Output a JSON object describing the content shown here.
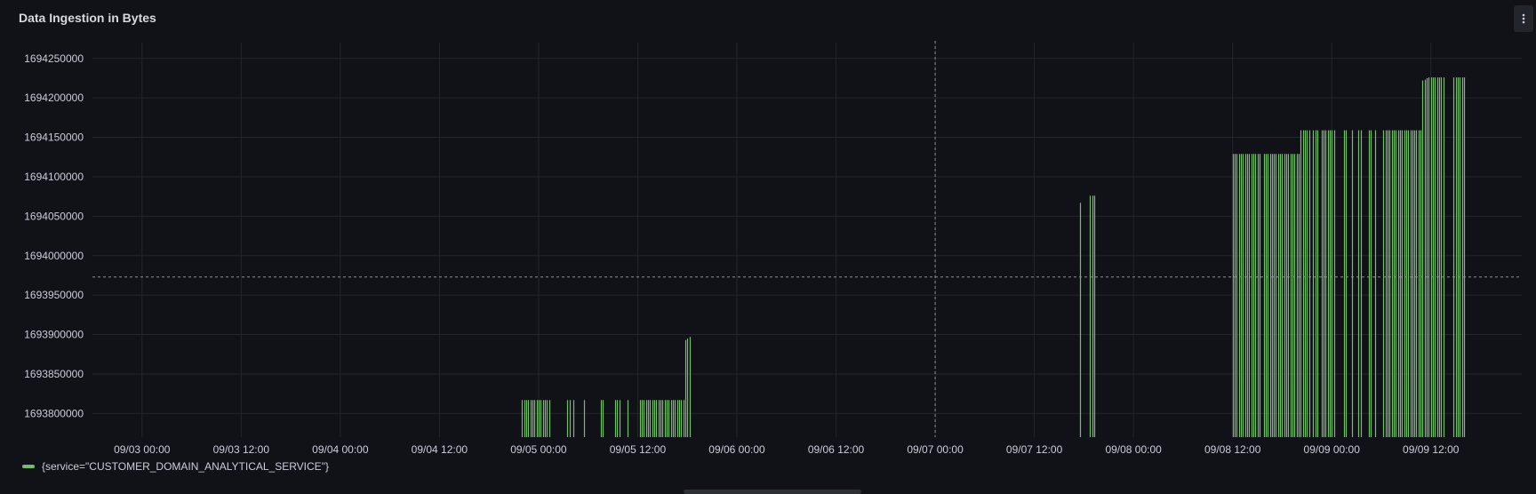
{
  "panel": {
    "title": "Data Ingestion in Bytes",
    "menu_icon": "vertical-ellipsis-icon"
  },
  "legend": {
    "label": "{service=\"CUSTOMER_DOMAIN_ANALYTICAL_SERVICE\"}",
    "color": "#73bf69"
  },
  "colors": {
    "background": "#111217",
    "grid": "#24262c",
    "series": "#73bf69",
    "crosshair": "#8e8e9e",
    "tick_text": "#ccccdc"
  },
  "chart_data": {
    "type": "bar",
    "title": "Data Ingestion in Bytes",
    "xlabel": "",
    "ylabel": "",
    "grid": true,
    "legend_position": "bottom-left",
    "x_axis": {
      "type": "time",
      "min": "09/02 18:00",
      "max": "09/09 23:00",
      "ticks": [
        "09/03 00:00",
        "09/03 12:00",
        "09/04 00:00",
        "09/04 12:00",
        "09/05 00:00",
        "09/05 12:00",
        "09/06 00:00",
        "09/06 12:00",
        "09/07 00:00",
        "09/07 12:00",
        "09/08 00:00",
        "09/08 12:00",
        "09/09 00:00",
        "09/09 12:00"
      ]
    },
    "y_axis": {
      "min": 1693770000,
      "max": 1694270000,
      "ticks": [
        1693800000,
        1693850000,
        1693900000,
        1693950000,
        1694000000,
        1694050000,
        1694100000,
        1694150000,
        1694200000,
        1694250000
      ]
    },
    "crosshair": {
      "x": "09/07 00:00",
      "y": 1693973000
    },
    "series": [
      {
        "name": "{service=\"CUSTOMER_DOMAIN_ANALYTICAL_SERVICE\"}",
        "points": [
          {
            "t": "09/04 22:00",
            "v": 1693817000
          },
          {
            "t": "09/04 22:15",
            "v": 1693817000
          },
          {
            "t": "09/04 22:30",
            "v": 1693817000
          },
          {
            "t": "09/04 22:45",
            "v": 1693817000
          },
          {
            "t": "09/04 23:00",
            "v": 1693817000
          },
          {
            "t": "09/04 23:15",
            "v": 1693817000
          },
          {
            "t": "09/04 23:30",
            "v": 1693817000
          },
          {
            "t": "09/04 23:45",
            "v": 1693817000
          },
          {
            "t": "09/05 00:00",
            "v": 1693817000
          },
          {
            "t": "09/05 00:15",
            "v": 1693817000
          },
          {
            "t": "09/05 00:30",
            "v": 1693817000
          },
          {
            "t": "09/05 00:45",
            "v": 1693817000
          },
          {
            "t": "09/05 01:00",
            "v": 1693817000
          },
          {
            "t": "09/05 01:15",
            "v": 1693817000
          },
          {
            "t": "09/05 03:30",
            "v": 1693817000
          },
          {
            "t": "09/05 03:45",
            "v": 1693817000
          },
          {
            "t": "09/05 04:15",
            "v": 1693817000
          },
          {
            "t": "09/05 05:30",
            "v": 1693817000
          },
          {
            "t": "09/05 07:30",
            "v": 1693817000
          },
          {
            "t": "09/05 07:45",
            "v": 1693817000
          },
          {
            "t": "09/05 09:15",
            "v": 1693817000
          },
          {
            "t": "09/05 09:30",
            "v": 1693817000
          },
          {
            "t": "09/05 09:45",
            "v": 1693817000
          },
          {
            "t": "09/05 10:45",
            "v": 1693817000
          },
          {
            "t": "09/05 12:15",
            "v": 1693817000
          },
          {
            "t": "09/05 12:30",
            "v": 1693817000
          },
          {
            "t": "09/05 12:45",
            "v": 1693817000
          },
          {
            "t": "09/05 13:00",
            "v": 1693817000
          },
          {
            "t": "09/05 13:15",
            "v": 1693817000
          },
          {
            "t": "09/05 13:30",
            "v": 1693817000
          },
          {
            "t": "09/05 13:45",
            "v": 1693817000
          },
          {
            "t": "09/05 14:00",
            "v": 1693817000
          },
          {
            "t": "09/05 14:15",
            "v": 1693817000
          },
          {
            "t": "09/05 14:30",
            "v": 1693817000
          },
          {
            "t": "09/05 14:45",
            "v": 1693817000
          },
          {
            "t": "09/05 15:00",
            "v": 1693817000
          },
          {
            "t": "09/05 15:15",
            "v": 1693817000
          },
          {
            "t": "09/05 15:30",
            "v": 1693817000
          },
          {
            "t": "09/05 15:45",
            "v": 1693817000
          },
          {
            "t": "09/05 16:00",
            "v": 1693817000
          },
          {
            "t": "09/05 16:15",
            "v": 1693817000
          },
          {
            "t": "09/05 16:30",
            "v": 1693817000
          },
          {
            "t": "09/05 16:45",
            "v": 1693817000
          },
          {
            "t": "09/05 17:00",
            "v": 1693817000
          },
          {
            "t": "09/05 17:15",
            "v": 1693817000
          },
          {
            "t": "09/05 17:30",
            "v": 1693817000
          },
          {
            "t": "09/05 17:45",
            "v": 1693893000
          },
          {
            "t": "09/05 18:00",
            "v": 1693895000
          },
          {
            "t": "09/05 18:15",
            "v": 1693897000
          },
          {
            "t": "09/07 17:30",
            "v": 1694067000
          },
          {
            "t": "09/07 18:45",
            "v": 1694076000
          },
          {
            "t": "09/07 19:00",
            "v": 1694076000
          },
          {
            "t": "09/07 19:15",
            "v": 1694076000
          },
          {
            "t": "09/08 12:00",
            "v": 1694129000
          },
          {
            "t": "09/08 12:15",
            "v": 1694129000
          },
          {
            "t": "09/08 12:30",
            "v": 1694129000
          },
          {
            "t": "09/08 12:45",
            "v": 1694129000
          },
          {
            "t": "09/08 13:00",
            "v": 1694129000
          },
          {
            "t": "09/08 13:15",
            "v": 1694129000
          },
          {
            "t": "09/08 13:30",
            "v": 1694129000
          },
          {
            "t": "09/08 13:45",
            "v": 1694129000
          },
          {
            "t": "09/08 14:00",
            "v": 1694129000
          },
          {
            "t": "09/08 14:15",
            "v": 1694129000
          },
          {
            "t": "09/08 14:30",
            "v": 1694129000
          },
          {
            "t": "09/08 14:45",
            "v": 1694129000
          },
          {
            "t": "09/08 15:00",
            "v": 1694129000
          },
          {
            "t": "09/08 15:15",
            "v": 1694129000
          },
          {
            "t": "09/08 15:45",
            "v": 1694129000
          },
          {
            "t": "09/08 16:00",
            "v": 1694129000
          },
          {
            "t": "09/08 16:15",
            "v": 1694129000
          },
          {
            "t": "09/08 16:30",
            "v": 1694129000
          },
          {
            "t": "09/08 16:45",
            "v": 1694129000
          },
          {
            "t": "09/08 17:00",
            "v": 1694129000
          },
          {
            "t": "09/08 17:15",
            "v": 1694129000
          },
          {
            "t": "09/08 17:30",
            "v": 1694129000
          },
          {
            "t": "09/08 17:45",
            "v": 1694129000
          },
          {
            "t": "09/08 18:00",
            "v": 1694129000
          },
          {
            "t": "09/08 18:15",
            "v": 1694129000
          },
          {
            "t": "09/08 18:30",
            "v": 1694129000
          },
          {
            "t": "09/08 18:45",
            "v": 1694129000
          },
          {
            "t": "09/08 19:00",
            "v": 1694129000
          },
          {
            "t": "09/08 19:15",
            "v": 1694129000
          },
          {
            "t": "09/08 19:30",
            "v": 1694129000
          },
          {
            "t": "09/08 19:45",
            "v": 1694129000
          },
          {
            "t": "09/08 20:00",
            "v": 1694129000
          },
          {
            "t": "09/08 20:15",
            "v": 1694159000
          },
          {
            "t": "09/08 20:30",
            "v": 1694159000
          },
          {
            "t": "09/08 20:45",
            "v": 1694159000
          },
          {
            "t": "09/08 21:00",
            "v": 1694159000
          },
          {
            "t": "09/08 21:15",
            "v": 1694159000
          },
          {
            "t": "09/08 21:45",
            "v": 1694159000
          },
          {
            "t": "09/08 22:00",
            "v": 1694159000
          },
          {
            "t": "09/08 22:15",
            "v": 1694159000
          },
          {
            "t": "09/08 22:45",
            "v": 1694159000
          },
          {
            "t": "09/08 23:00",
            "v": 1694159000
          },
          {
            "t": "09/08 23:15",
            "v": 1694159000
          },
          {
            "t": "09/08 23:30",
            "v": 1694159000
          },
          {
            "t": "09/08 23:45",
            "v": 1694159000
          },
          {
            "t": "09/09 00:00",
            "v": 1694159000
          },
          {
            "t": "09/09 00:15",
            "v": 1694159000
          },
          {
            "t": "09/09 01:30",
            "v": 1694159000
          },
          {
            "t": "09/09 01:45",
            "v": 1694159000
          },
          {
            "t": "09/09 02:30",
            "v": 1694159000
          },
          {
            "t": "09/09 03:15",
            "v": 1694159000
          },
          {
            "t": "09/09 03:30",
            "v": 1694159000
          },
          {
            "t": "09/09 04:30",
            "v": 1694159000
          },
          {
            "t": "09/09 04:45",
            "v": 1694159000
          },
          {
            "t": "09/09 05:15",
            "v": 1694159000
          },
          {
            "t": "09/09 06:15",
            "v": 1694159000
          },
          {
            "t": "09/09 06:30",
            "v": 1694159000
          },
          {
            "t": "09/09 06:45",
            "v": 1694159000
          },
          {
            "t": "09/09 07:00",
            "v": 1694159000
          },
          {
            "t": "09/09 07:15",
            "v": 1694159000
          },
          {
            "t": "09/09 07:30",
            "v": 1694159000
          },
          {
            "t": "09/09 07:45",
            "v": 1694159000
          },
          {
            "t": "09/09 08:00",
            "v": 1694159000
          },
          {
            "t": "09/09 08:15",
            "v": 1694159000
          },
          {
            "t": "09/09 08:30",
            "v": 1694159000
          },
          {
            "t": "09/09 08:45",
            "v": 1694159000
          },
          {
            "t": "09/09 09:00",
            "v": 1694159000
          },
          {
            "t": "09/09 09:15",
            "v": 1694159000
          },
          {
            "t": "09/09 09:30",
            "v": 1694159000
          },
          {
            "t": "09/09 09:45",
            "v": 1694159000
          },
          {
            "t": "09/09 10:00",
            "v": 1694159000
          },
          {
            "t": "09/09 10:15",
            "v": 1694159000
          },
          {
            "t": "09/09 10:30",
            "v": 1694159000
          },
          {
            "t": "09/09 10:45",
            "v": 1694159000
          },
          {
            "t": "09/09 11:00",
            "v": 1694222000
          },
          {
            "t": "09/09 11:15",
            "v": 1694223000
          },
          {
            "t": "09/09 11:30",
            "v": 1694225000
          },
          {
            "t": "09/09 11:45",
            "v": 1694226000
          },
          {
            "t": "09/09 12:00",
            "v": 1694226000
          },
          {
            "t": "09/09 12:15",
            "v": 1694226000
          },
          {
            "t": "09/09 12:30",
            "v": 1694226000
          },
          {
            "t": "09/09 12:45",
            "v": 1694226000
          },
          {
            "t": "09/09 13:00",
            "v": 1694226000
          },
          {
            "t": "09/09 13:15",
            "v": 1694226000
          },
          {
            "t": "09/09 13:30",
            "v": 1694226000
          },
          {
            "t": "09/09 14:45",
            "v": 1694226000
          },
          {
            "t": "09/09 15:00",
            "v": 1694226000
          },
          {
            "t": "09/09 15:15",
            "v": 1694226000
          },
          {
            "t": "09/09 15:30",
            "v": 1694226000
          },
          {
            "t": "09/09 15:45",
            "v": 1694226000
          },
          {
            "t": "09/09 16:00",
            "v": 1694226000
          }
        ]
      }
    ]
  }
}
